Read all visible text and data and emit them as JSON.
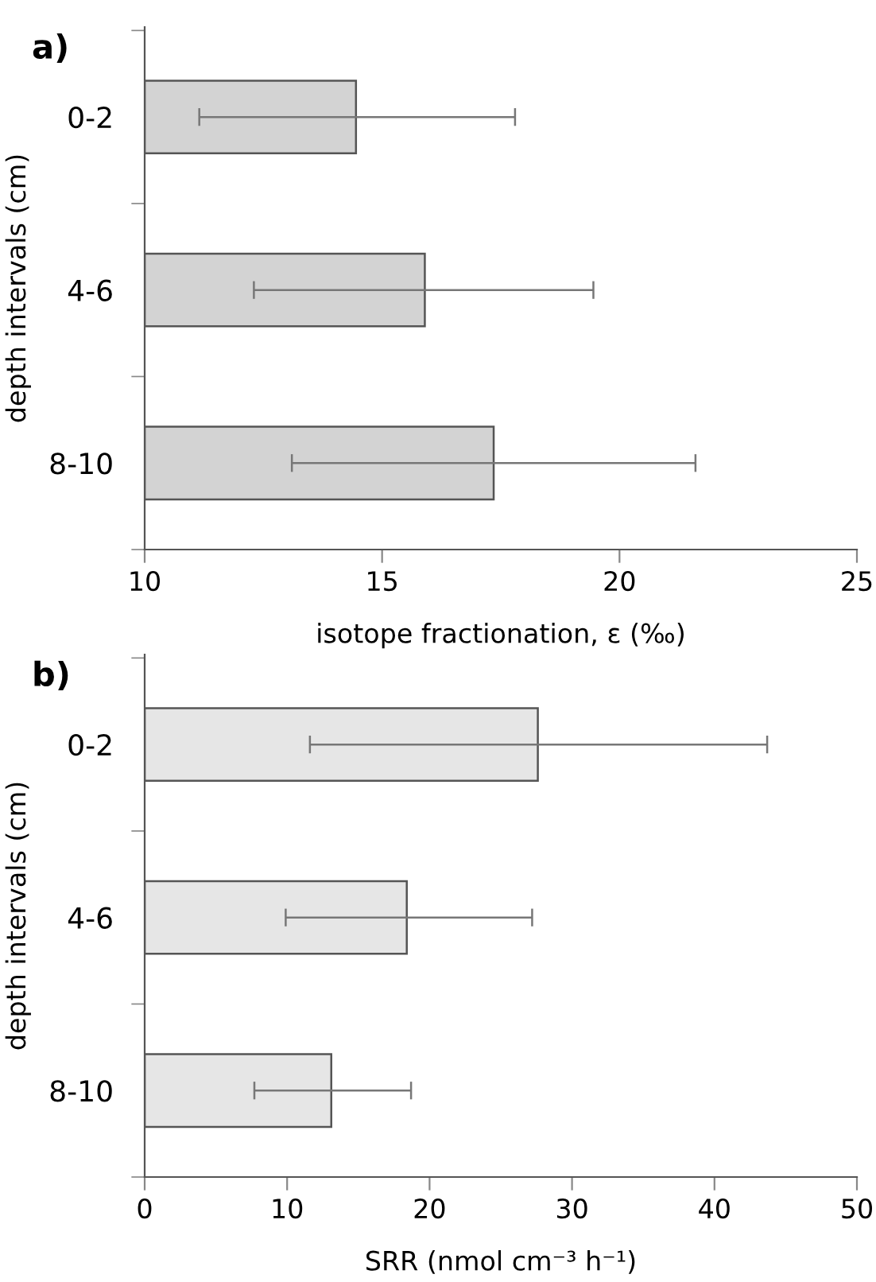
{
  "chart_data": [
    {
      "type": "bar",
      "orientation": "horizontal",
      "title": "a)",
      "xlabel": "isotope fractionation, ε (‰)",
      "ylabel": "depth intervals (cm)",
      "categories": [
        "0-2",
        "4-6",
        "8-10"
      ],
      "values": [
        14.45,
        15.9,
        17.35
      ],
      "color": "#d3d3d3",
      "errors": [
        [
          11.15,
          17.8
        ],
        [
          12.3,
          19.45
        ],
        [
          13.1,
          21.6
        ]
      ],
      "xlim": [
        10,
        25
      ],
      "xticks": [
        10,
        15,
        20,
        25
      ],
      "grid": false
    },
    {
      "type": "bar",
      "orientation": "horizontal",
      "title": "b)",
      "xlabel": "SRR (nmol cm⁻³ h⁻¹)",
      "ylabel": "depth intervals (cm)",
      "categories": [
        "0-2",
        "4-6",
        "8-10"
      ],
      "values": [
        27.6,
        18.4,
        13.1
      ],
      "color": "#e6e6e6",
      "errors": [
        [
          11.6,
          43.7
        ],
        [
          9.9,
          27.2
        ],
        [
          7.7,
          18.7
        ]
      ],
      "xlim": [
        0,
        50
      ],
      "xticks": [
        0,
        10,
        20,
        30,
        40,
        50
      ],
      "grid": false
    }
  ]
}
